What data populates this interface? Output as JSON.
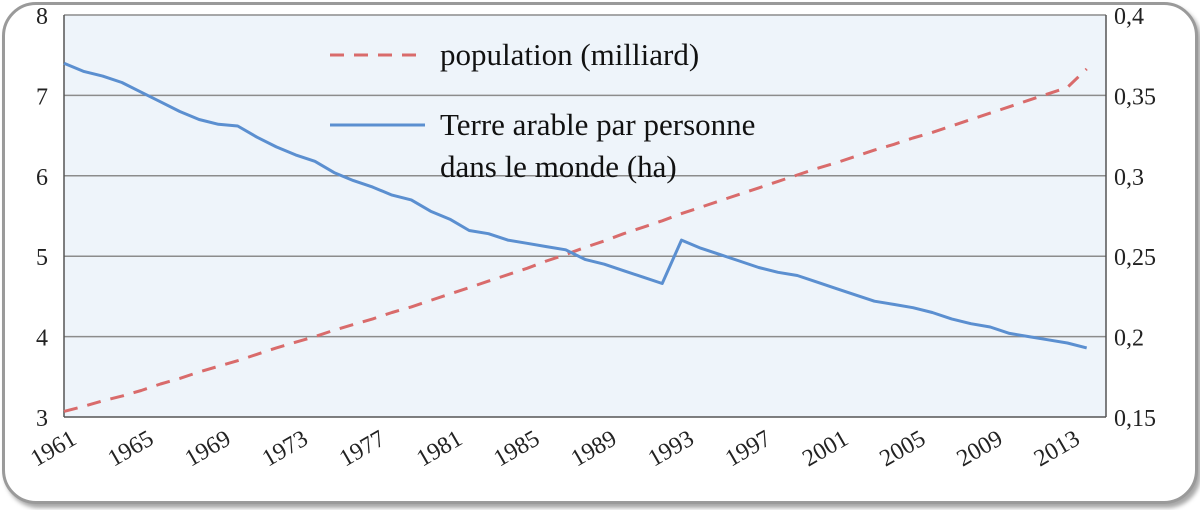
{
  "chart_data": {
    "type": "line",
    "x": [
      1961,
      1962,
      1963,
      1964,
      1965,
      1966,
      1967,
      1968,
      1969,
      1970,
      1971,
      1972,
      1973,
      1974,
      1975,
      1976,
      1977,
      1978,
      1979,
      1980,
      1981,
      1982,
      1983,
      1984,
      1985,
      1986,
      1987,
      1988,
      1989,
      1990,
      1991,
      1992,
      1993,
      1994,
      1995,
      1996,
      1997,
      1998,
      1999,
      2000,
      2001,
      2002,
      2003,
      2004,
      2005,
      2006,
      2007,
      2008,
      2009,
      2010,
      2011,
      2012,
      2013,
      2014
    ],
    "x_tick_labels": [
      "1961",
      "1965",
      "1969",
      "1973",
      "1977",
      "1981",
      "1985",
      "1989",
      "1993",
      "1997",
      "2001",
      "2005",
      "2009",
      "2013"
    ],
    "y_left": {
      "ylim": [
        3,
        8
      ],
      "tick_labels": [
        "3",
        "4",
        "5",
        "6",
        "7",
        "8"
      ]
    },
    "y_right": {
      "ylim": [
        0.15,
        0.4
      ],
      "tick_labels": [
        "0,15",
        "0,2",
        "0,25",
        "0,3",
        "0,35",
        "0,4"
      ]
    },
    "grid": true,
    "legend_position": "top-center",
    "series": [
      {
        "name": "population (milliard)",
        "axis": "left",
        "style": "dashed",
        "color": "#d96b6b",
        "values": [
          3.07,
          3.13,
          3.2,
          3.26,
          3.33,
          3.41,
          3.48,
          3.56,
          3.63,
          3.7,
          3.78,
          3.86,
          3.93,
          4.0,
          4.08,
          4.15,
          4.22,
          4.3,
          4.37,
          4.45,
          4.53,
          4.61,
          4.69,
          4.77,
          4.85,
          4.94,
          5.02,
          5.11,
          5.19,
          5.28,
          5.36,
          5.44,
          5.53,
          5.61,
          5.69,
          5.77,
          5.85,
          5.93,
          6.01,
          6.09,
          6.16,
          6.24,
          6.32,
          6.39,
          6.47,
          6.54,
          6.62,
          6.7,
          6.78,
          6.86,
          6.94,
          7.02,
          7.1,
          7.33
        ]
      },
      {
        "name": "Terre arable par personne dans le monde (ha)",
        "name_lines": [
          "Terre arable par personne",
          "dans le monde (ha)"
        ],
        "axis": "right",
        "style": "solid",
        "color": "#5b8fd0",
        "values": [
          0.37,
          0.365,
          0.362,
          0.358,
          0.352,
          0.346,
          0.34,
          0.335,
          0.332,
          0.331,
          0.324,
          0.318,
          0.313,
          0.309,
          0.302,
          0.297,
          0.293,
          0.288,
          0.285,
          0.278,
          0.273,
          0.266,
          0.264,
          0.26,
          0.258,
          0.256,
          0.254,
          0.248,
          0.245,
          0.241,
          0.237,
          0.233,
          0.26,
          0.255,
          0.251,
          0.247,
          0.243,
          0.24,
          0.238,
          0.234,
          0.23,
          0.226,
          0.222,
          0.22,
          0.218,
          0.215,
          0.211,
          0.208,
          0.206,
          0.202,
          0.2,
          0.198,
          0.196,
          0.193
        ]
      }
    ]
  }
}
